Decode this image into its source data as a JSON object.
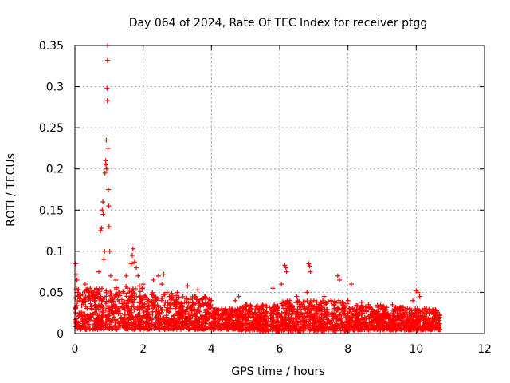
{
  "chart_data": {
    "type": "scatter",
    "title": "Day 064 of 2024, Rate Of TEC Index for receiver ptgg",
    "xlabel": "GPS time / hours",
    "ylabel": "ROTI / TECUs",
    "xlim": [
      0,
      12
    ],
    "ylim": [
      0,
      0.35
    ],
    "xticks": [
      0,
      2,
      4,
      6,
      8,
      10,
      12
    ],
    "yticks": [
      0,
      0.05,
      0.1,
      0.15,
      0.2,
      0.25,
      0.3,
      0.35
    ],
    "xtick_labels": [
      "0",
      "2",
      "4",
      "6",
      "8",
      "10",
      "12"
    ],
    "ytick_labels": [
      "0",
      "0.05",
      "0.1",
      "0.15",
      "0.2",
      "0.25",
      "0.3",
      "0.35"
    ],
    "grid": true,
    "marker": "+",
    "color": "#ff0000",
    "series": [
      {
        "name": "ROTI",
        "points": [
          [
            0.02,
            0.085
          ],
          [
            0.04,
            0.072
          ],
          [
            0.06,
            0.065
          ],
          [
            0.1,
            0.045
          ],
          [
            0.15,
            0.04
          ],
          [
            0.3,
            0.06
          ],
          [
            0.45,
            0.055
          ],
          [
            0.55,
            0.05
          ],
          [
            0.6,
            0.04
          ],
          [
            0.7,
            0.075
          ],
          [
            0.75,
            0.125
          ],
          [
            0.78,
            0.128
          ],
          [
            0.8,
            0.15
          ],
          [
            0.82,
            0.16
          ],
          [
            0.83,
            0.145
          ],
          [
            0.85,
            0.09
          ],
          [
            0.87,
            0.1
          ],
          [
            0.88,
            0.195
          ],
          [
            0.9,
            0.21
          ],
          [
            0.91,
            0.205
          ],
          [
            0.92,
            0.235
          ],
          [
            0.93,
            0.2
          ],
          [
            0.94,
            0.298
          ],
          [
            0.95,
            0.283
          ],
          [
            0.955,
            0.332
          ],
          [
            0.96,
            0.35
          ],
          [
            0.97,
            0.225
          ],
          [
            0.98,
            0.175
          ],
          [
            0.99,
            0.155
          ],
          [
            1.0,
            0.13
          ],
          [
            1.02,
            0.1
          ],
          [
            1.05,
            0.07
          ],
          [
            1.2,
            0.065
          ],
          [
            1.5,
            0.07
          ],
          [
            1.65,
            0.085
          ],
          [
            1.68,
            0.095
          ],
          [
            1.7,
            0.103
          ],
          [
            1.75,
            0.087
          ],
          [
            1.8,
            0.08
          ],
          [
            1.85,
            0.07
          ],
          [
            2.0,
            0.06
          ],
          [
            2.3,
            0.065
          ],
          [
            2.45,
            0.07
          ],
          [
            2.55,
            0.06
          ],
          [
            2.6,
            0.072
          ],
          [
            2.7,
            0.05
          ],
          [
            3.0,
            0.05
          ],
          [
            3.3,
            0.058
          ],
          [
            3.6,
            0.053
          ],
          [
            3.8,
            0.045
          ],
          [
            4.0,
            0.04
          ],
          [
            4.3,
            0.03
          ],
          [
            4.5,
            0.025
          ],
          [
            4.7,
            0.04
          ],
          [
            4.8,
            0.045
          ],
          [
            5.0,
            0.035
          ],
          [
            5.5,
            0.035
          ],
          [
            5.8,
            0.055
          ],
          [
            6.05,
            0.06
          ],
          [
            6.15,
            0.083
          ],
          [
            6.18,
            0.08
          ],
          [
            6.2,
            0.075
          ],
          [
            6.3,
            0.04
          ],
          [
            6.5,
            0.045
          ],
          [
            6.6,
            0.035
          ],
          [
            6.8,
            0.05
          ],
          [
            6.85,
            0.085
          ],
          [
            6.88,
            0.082
          ],
          [
            6.9,
            0.075
          ],
          [
            7.0,
            0.04
          ],
          [
            7.3,
            0.045
          ],
          [
            7.5,
            0.04
          ],
          [
            7.7,
            0.07
          ],
          [
            7.75,
            0.065
          ],
          [
            8.0,
            0.04
          ],
          [
            8.1,
            0.06
          ],
          [
            8.4,
            0.038
          ],
          [
            8.6,
            0.035
          ],
          [
            9.0,
            0.035
          ],
          [
            9.3,
            0.035
          ],
          [
            9.6,
            0.032
          ],
          [
            9.9,
            0.04
          ],
          [
            10.0,
            0.052
          ],
          [
            10.05,
            0.05
          ],
          [
            10.1,
            0.045
          ],
          [
            10.3,
            0.03
          ],
          [
            10.5,
            0.028
          ],
          [
            10.65,
            0.02
          ]
        ],
        "band": {
          "note": "dense cloud of points between 0 and 10.7 h",
          "segments": [
            {
              "x": [
                0,
                1.0
              ],
              "low": 0.005,
              "high": 0.055
            },
            {
              "x": [
                1.0,
                2.0
              ],
              "low": 0.005,
              "high": 0.058
            },
            {
              "x": [
                2.0,
                3.0
              ],
              "low": 0.005,
              "high": 0.05
            },
            {
              "x": [
                3.0,
                4.0
              ],
              "low": 0.005,
              "high": 0.045
            },
            {
              "x": [
                4.0,
                4.8
              ],
              "low": 0.005,
              "high": 0.03
            },
            {
              "x": [
                4.8,
                6.0
              ],
              "low": 0.003,
              "high": 0.035
            },
            {
              "x": [
                6.0,
                7.0
              ],
              "low": 0.003,
              "high": 0.04
            },
            {
              "x": [
                7.0,
                8.0
              ],
              "low": 0.003,
              "high": 0.04
            },
            {
              "x": [
                8.0,
                9.0
              ],
              "low": 0.004,
              "high": 0.035
            },
            {
              "x": [
                9.0,
                10.0
              ],
              "low": 0.004,
              "high": 0.032
            },
            {
              "x": [
                10.0,
                10.7
              ],
              "low": 0.004,
              "high": 0.03
            }
          ]
        }
      }
    ]
  }
}
